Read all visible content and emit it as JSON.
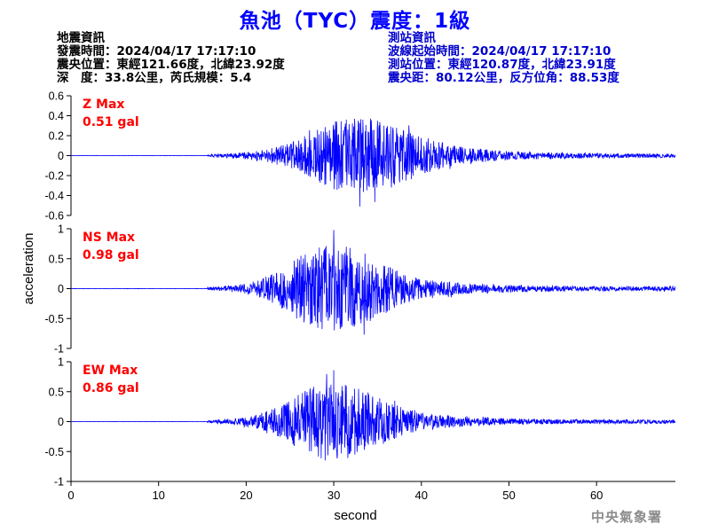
{
  "header": {
    "title": "魚池（TYC）震度：1級"
  },
  "quake_info": {
    "heading": "地震資訊",
    "origin_time": "發震時間：2024/04/17 17:17:10",
    "epicenter": "震央位置：東經121.66度，北緯23.92度",
    "depth_magnitude": "深　度：33.8公里，芮氏規模：5.4"
  },
  "station_info": {
    "heading": "測站資訊",
    "record_start": "波線起始時間：2024/04/17 17:17:10",
    "location": "測站位置：東經120.87度，北緯23.91度",
    "distance_azimuth": "震央距：80.12公里，反方位角：88.53度"
  },
  "watermark": "中央氣象署",
  "colors": {
    "trace": "#0000ff",
    "max_label": "#ff0000",
    "title": "#0000ff",
    "station_text": "#0000cc"
  },
  "chart_data": {
    "type": "line",
    "xlabel": "second",
    "ylabel": "acceleration",
    "xlim": [
      0,
      69
    ],
    "x_ticks": [
      0,
      10,
      20,
      30,
      40,
      50,
      60
    ],
    "grid": false,
    "panels": [
      {
        "name": "Z",
        "max_label": "Z Max",
        "max_value": "0.51 gal",
        "ylim": [
          -0.6,
          0.6
        ],
        "y_ticks": [
          -0.6,
          -0.4,
          -0.2,
          0,
          0.2,
          0.4,
          0.6
        ],
        "y_tick_labels": [
          "-0.6",
          "-0.4",
          "-0.2",
          "0",
          "0.2",
          "0.4",
          "0.6"
        ],
        "p_arrival": 15.6,
        "peak_time": 33,
        "peak": 0.51,
        "spread": 8,
        "seed": 11
      },
      {
        "name": "NS",
        "max_label": "NS Max",
        "max_value": "0.98 gal",
        "ylim": [
          -1,
          1
        ],
        "y_ticks": [
          -1,
          -0.5,
          0,
          0.5,
          1
        ],
        "y_tick_labels": [
          "-1",
          "-0.5",
          "0",
          "0.5",
          "1"
        ],
        "p_arrival": 15.6,
        "peak_time": 30,
        "peak": 0.98,
        "spread": 7,
        "seed": 23
      },
      {
        "name": "EW",
        "max_label": "EW Max",
        "max_value": "0.86 gal",
        "ylim": [
          -1,
          1
        ],
        "y_ticks": [
          -1,
          -0.5,
          0,
          0.5,
          1
        ],
        "y_tick_labels": [
          "-1",
          "-0.5",
          "0",
          "0.5",
          "1"
        ],
        "p_arrival": 15.6,
        "peak_time": 30,
        "peak": 0.86,
        "spread": 7,
        "seed": 37
      }
    ]
  }
}
